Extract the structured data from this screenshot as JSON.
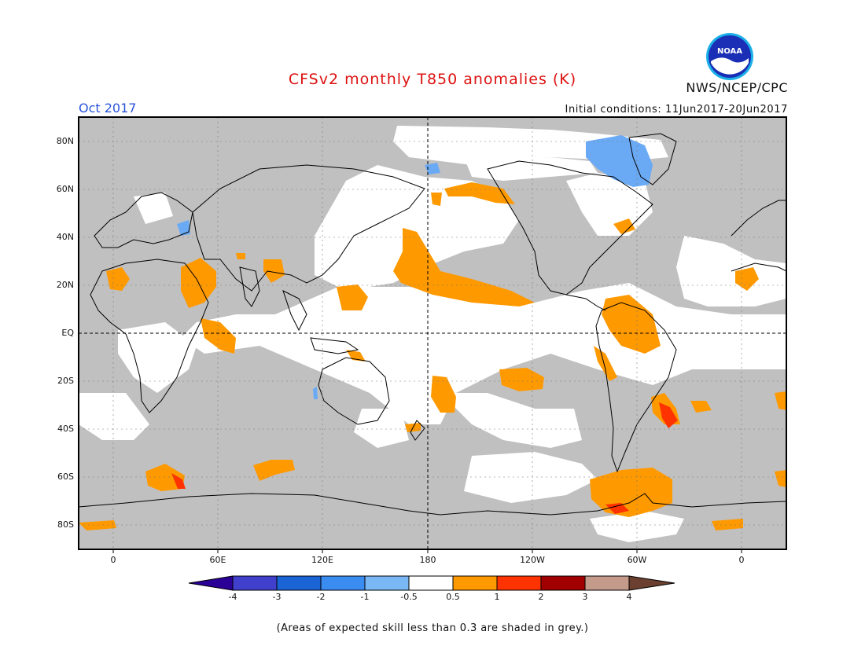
{
  "header": {
    "title": "CFSv2 monthly T850 anomalies (K)",
    "organization": "NWS/NCEP/CPC",
    "month": "Oct 2017",
    "initial_conditions": "Initial conditions: 11Jun2017-20Jun2017",
    "logo_text": "NOAA"
  },
  "map": {
    "lat_labels": [
      "80N",
      "60N",
      "40N",
      "20N",
      "EQ",
      "20S",
      "40S",
      "60S",
      "80S"
    ],
    "lon_labels": [
      "0",
      "60E",
      "120E",
      "180",
      "120W",
      "60W",
      "0"
    ],
    "colors": {
      "no_skill_grey": "#c0c0c0",
      "neutral_white": "#ffffff",
      "warm_05_1": "#ff9900",
      "warm_1_2": "#ff3300",
      "cool_minus05_minus1": "#6aaaf5"
    }
  },
  "colorbar": {
    "labels": [
      "-4",
      "-3",
      "-2",
      "-1",
      "-0.5",
      "0.5",
      "1",
      "2",
      "3",
      "4"
    ],
    "colors": [
      "#2a0096",
      "#4040cc",
      "#1a64d6",
      "#3a8cf0",
      "#7ab8f5",
      "#ffffff",
      "#ff9900",
      "#ff3300",
      "#a00000",
      "#c49a8a",
      "#6b4030"
    ]
  },
  "footnote": "(Areas of expected skill less than 0.3 are shaded in grey.)"
}
